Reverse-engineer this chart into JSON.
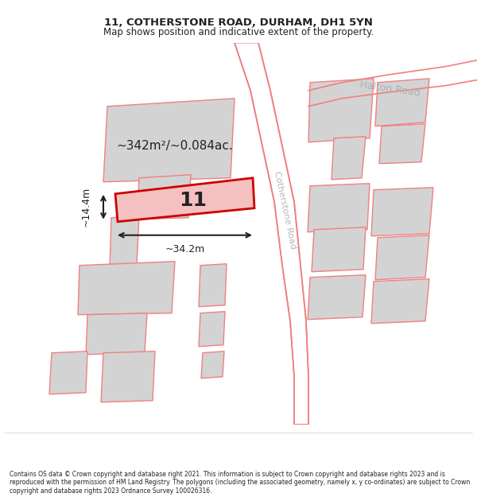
{
  "title_line1": "11, COTHERSTONE ROAD, DURHAM, DH1 5YN",
  "title_line2": "Map shows position and indicative extent of the property.",
  "property_number": "11",
  "area_text": "~342m²/~0.084ac.",
  "width_text": "~34.2m",
  "height_text": "~14.4m",
  "road_name_main": "Cotherstone Road",
  "road_name_top": "Halton Road",
  "footer_text": "Contains OS data © Crown copyright and database right 2021. This information is subject to Crown copyright and database rights 2023 and is reproduced with the permission of HM Land Registry. The polygons (including the associated geometry, namely x, y co-ordinates) are subject to Crown copyright and database rights 2023 Ordnance Survey 100026316.",
  "bg_color": "#ffffff",
  "map_bg": "#ffffff",
  "road_line_color": "#f08080",
  "building_fill": "#d3d3d3",
  "building_edge": "#f08080",
  "highlight_fill": "none",
  "highlight_edge": "#cc0000",
  "road_label_color": "#aaaaaa",
  "measure_color": "#222222",
  "title_color": "#222222",
  "footer_color": "#222222"
}
